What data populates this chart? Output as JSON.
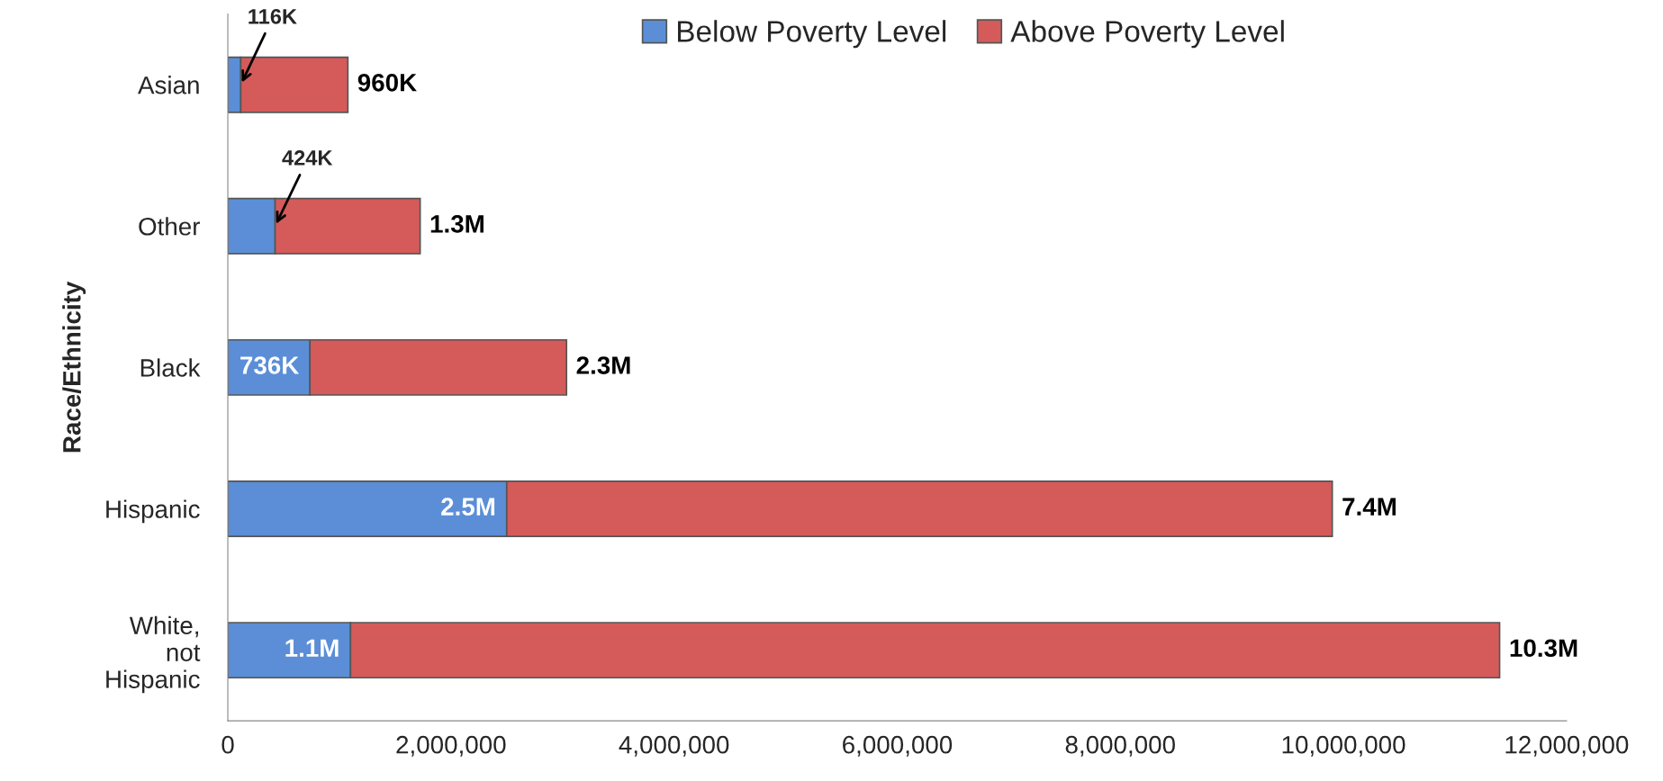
{
  "chart_data": {
    "type": "bar",
    "orientation": "horizontal",
    "stacked": true,
    "ylabel": "Race/Ethnicity",
    "categories": [
      "Asian",
      "Other",
      "Black",
      "Hispanic",
      "White,\nnot\nHispanic"
    ],
    "series": [
      {
        "name": "Below Poverty Level",
        "color": "#5b8ed6",
        "values": [
          116000,
          424000,
          736000,
          2500000,
          1100000
        ],
        "value_labels": [
          "116K",
          "424K",
          "736K",
          "2.5M",
          "1.1M"
        ]
      },
      {
        "name": "Above Poverty Level",
        "color": "#d45b5a",
        "values": [
          960000,
          1300000,
          2300000,
          7400000,
          10300000
        ],
        "value_labels": [
          "960K",
          "1.3M",
          "2.3M",
          "7.4M",
          "10.3M"
        ]
      }
    ],
    "xlim": [
      0,
      12000000
    ],
    "xticks": [
      0,
      {
        "value": 2000000,
        "label": "2,000,000"
      },
      {
        "value": 4000000,
        "label": "4,000,000"
      },
      {
        "value": 6000000,
        "label": "6,000,000"
      },
      {
        "value": 8000000,
        "label": "8,000,000"
      },
      {
        "value": 10000000,
        "label": "10,000,000"
      },
      {
        "value": 12000000,
        "label": "12,000,000"
      }
    ],
    "legend": "top",
    "grid": false
  }
}
